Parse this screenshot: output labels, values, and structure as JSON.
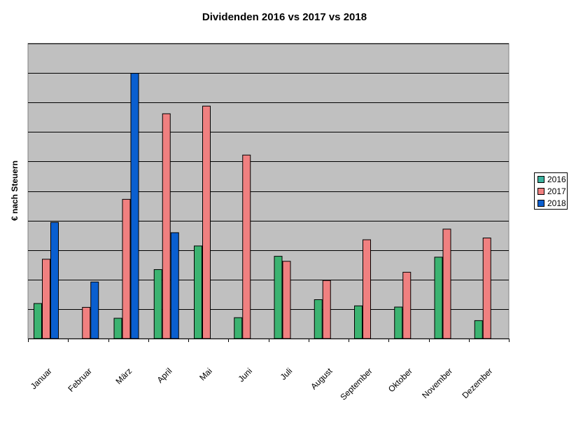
{
  "chart_data": {
    "type": "bar",
    "title": "Dividenden 2016 vs 2017 vs 2018",
    "ylabel": "€ nach Steuern",
    "xlabel": "",
    "y_tick_labels_shown": false,
    "ylim": [
      0,
      10
    ],
    "grid": true,
    "legend_position": "right",
    "categories": [
      "Januar",
      "Februar",
      "März",
      "April",
      "Mai",
      "Juni",
      "Juli",
      "August",
      "September",
      "Oktober",
      "November",
      "Dezember"
    ],
    "series": [
      {
        "name": "2016",
        "color": "#3CB371",
        "values": [
          1.2,
          0,
          0.7,
          2.35,
          3.15,
          0.72,
          2.8,
          1.33,
          1.12,
          1.08,
          2.77,
          0.62
        ]
      },
      {
        "name": "2017",
        "color": "#F08080",
        "values": [
          2.7,
          1.07,
          4.73,
          7.63,
          7.89,
          6.23,
          2.63,
          1.98,
          3.36,
          2.26,
          3.72,
          3.42
        ]
      },
      {
        "name": "2018",
        "color": "#0A5FD0",
        "values": [
          3.95,
          1.93,
          9.0,
          3.6,
          0,
          0,
          0,
          0,
          0,
          0,
          0,
          0
        ]
      }
    ]
  },
  "legend": {
    "items": [
      {
        "label": "2016",
        "color": "#3CB3A0"
      },
      {
        "label": "2017",
        "color": "#F08080"
      },
      {
        "label": "2018",
        "color": "#0A5FD0"
      }
    ]
  }
}
